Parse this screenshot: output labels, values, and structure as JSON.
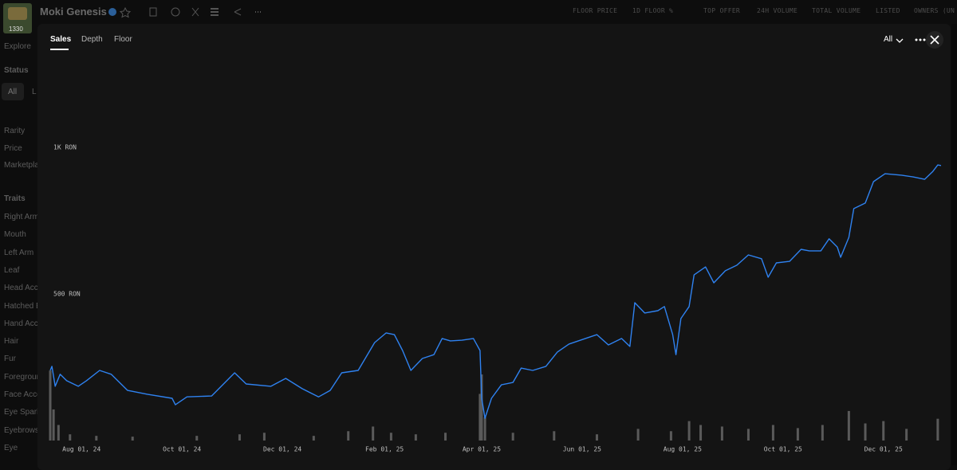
{
  "header": {
    "badge": "1330",
    "title": "Moki Genesis",
    "columns": [
      "FLOOR PRICE",
      "1D FLOOR %",
      "TOP OFFER",
      "24H VOLUME",
      "TOTAL VOLUME",
      "LISTED",
      "OWNERS (UN"
    ]
  },
  "sidebar": {
    "explore": "Explore",
    "status": "Status",
    "status_options": [
      "All",
      "L"
    ],
    "filters": [
      "Rarity",
      "Price",
      "Marketpla"
    ],
    "traits_title": "Traits",
    "traits": [
      "Right Arm",
      "Mouth",
      "Left Arm",
      "Leaf",
      "Head Acce",
      "Hatched E",
      "Hand Acce",
      "Hair",
      "Fur",
      "Foregroun",
      "Face Acce",
      "Eye Spark",
      "Eyebrows",
      "Eye"
    ]
  },
  "modal": {
    "tabs": [
      "Sales",
      "Depth",
      "Floor"
    ],
    "range": "All"
  },
  "chart_data": [
    {
      "type": "line",
      "x": [
        "2024-07-13",
        "2024-07-14",
        "2024-07-16",
        "2024-07-19",
        "2024-07-23",
        "2024-07-30",
        "2024-08-04",
        "2024-08-12",
        "2024-08-19",
        "2024-08-29",
        "2024-09-10",
        "2024-09-25",
        "2024-09-27",
        "2024-10-04",
        "2024-10-19",
        "2024-11-02",
        "2024-11-09",
        "2024-11-24",
        "2024-12-03",
        "2024-12-13",
        "2024-12-23",
        "2024-12-30",
        "2025-01-06",
        "2025-01-16",
        "2025-01-26",
        "2025-02-02",
        "2025-02-07",
        "2025-02-12",
        "2025-02-17",
        "2025-02-24",
        "2025-03-03",
        "2025-03-08",
        "2025-03-13",
        "2025-03-20",
        "2025-03-27",
        "2025-03-31",
        "2025-04-01",
        "2025-04-03",
        "2025-04-07",
        "2025-04-13",
        "2025-04-20",
        "2025-04-25",
        "2025-05-02",
        "2025-05-10",
        "2025-05-17",
        "2025-05-24",
        "2025-06-03",
        "2025-06-10",
        "2025-06-17",
        "2025-06-25",
        "2025-06-30",
        "2025-07-03",
        "2025-07-09",
        "2025-07-17",
        "2025-07-21",
        "2025-07-26",
        "2025-07-28",
        "2025-07-31",
        "2025-08-05",
        "2025-08-08",
        "2025-08-15",
        "2025-08-20",
        "2025-08-27",
        "2025-09-03",
        "2025-09-10",
        "2025-09-18",
        "2025-09-22",
        "2025-09-27",
        "2025-10-05",
        "2025-10-12",
        "2025-10-17",
        "2025-10-24",
        "2025-10-29",
        "2025-11-03",
        "2025-11-05",
        "2025-11-10",
        "2025-11-13",
        "2025-11-20",
        "2025-11-25",
        "2025-12-02",
        "2025-12-12",
        "2025-12-19",
        "2025-12-26",
        "2025-12-31",
        "2026-01-03",
        "2026-01-05"
      ],
      "series": [
        {
          "color": "#2f82f0",
          "values": [
            239,
            253,
            185,
            226,
            204,
            185,
            204,
            239,
            226,
            171,
            158,
            144,
            122,
            149,
            152,
            231,
            193,
            185,
            212,
            177,
            149,
            171,
            231,
            239,
            334,
            367,
            361,
            307,
            239,
            280,
            293,
            348,
            340,
            342,
            348,
            307,
            144,
            76,
            144,
            190,
            198,
            247,
            239,
            253,
            302,
            329,
            348,
            361,
            326,
            348,
            321,
            470,
            435,
            443,
            457,
            361,
            293,
            416,
            457,
            565,
            592,
            538,
            579,
            598,
            633,
            620,
            557,
            606,
            611,
            652,
            647,
            647,
            688,
            660,
            625,
            693,
            791,
            810,
            883,
            910,
            905,
            899,
            891,
            918,
            940,
            938
          ]
        }
      ],
      "xlim": [
        "2024-07-13",
        "2026-01-05"
      ],
      "ylim": [
        0,
        1326
      ],
      "xticks": [
        {
          "value": "2024-08-01",
          "label": "Aug 01, 24"
        },
        {
          "value": "2024-10-01",
          "label": "Oct 01, 24"
        },
        {
          "value": "2024-12-01",
          "label": "Dec 01, 24"
        },
        {
          "value": "2025-02-01",
          "label": "Feb 01, 25"
        },
        {
          "value": "2025-04-01",
          "label": "Apr 01, 25"
        },
        {
          "value": "2025-06-01",
          "label": "Jun 01, 25"
        },
        {
          "value": "2025-08-01",
          "label": "Aug 01, 25"
        },
        {
          "value": "2025-10-01",
          "label": "Oct 01, 25"
        },
        {
          "value": "2025-12-01",
          "label": "Dec 01, 25"
        }
      ],
      "yticks": [
        {
          "value": 500,
          "label": "500 RON"
        },
        {
          "value": 1000,
          "label": "1K RON"
        }
      ],
      "grid": false
    },
    {
      "type": "bar",
      "x": [
        "2024-07-13",
        "2024-07-15",
        "2024-07-18",
        "2024-07-25",
        "2024-08-10",
        "2024-09-01",
        "2024-10-10",
        "2024-11-05",
        "2024-11-20",
        "2024-12-20",
        "2025-01-10",
        "2025-01-25",
        "2025-02-05",
        "2025-02-20",
        "2025-03-10",
        "2025-03-31",
        "2025-04-01",
        "2025-04-03",
        "2025-04-20",
        "2025-05-15",
        "2025-06-10",
        "2025-07-05",
        "2025-07-25",
        "2025-08-05",
        "2025-08-12",
        "2025-08-25",
        "2025-09-10",
        "2025-09-25",
        "2025-10-10",
        "2025-10-25",
        "2025-11-10",
        "2025-11-20",
        "2025-12-01",
        "2025-12-15",
        "2026-01-03"
      ],
      "values": [
        90,
        40,
        20,
        8,
        6,
        5,
        6,
        8,
        10,
        6,
        12,
        18,
        10,
        8,
        10,
        60,
        85,
        30,
        10,
        12,
        8,
        15,
        12,
        25,
        20,
        18,
        15,
        20,
        16,
        20,
        38,
        22,
        25,
        15,
        28
      ],
      "color": "#5a5a5a",
      "xlim": [
        "2024-07-13",
        "2026-01-05"
      ],
      "ylim": [
        0,
        500
      ]
    }
  ]
}
